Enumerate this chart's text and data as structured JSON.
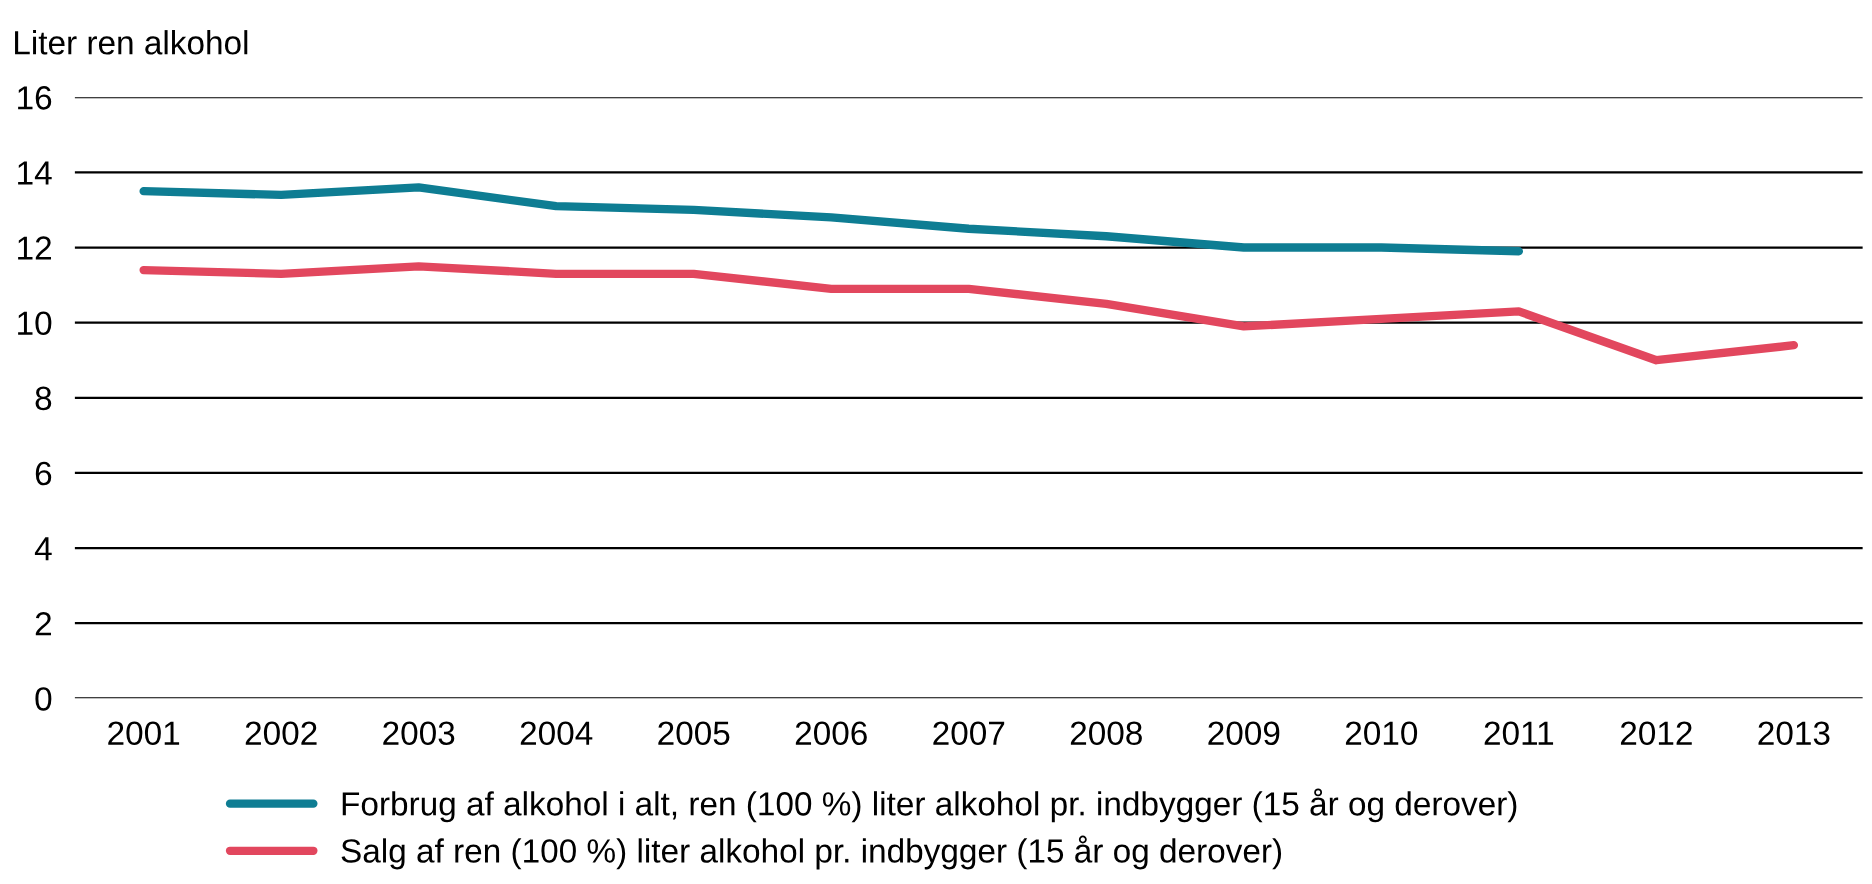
{
  "chart_data": {
    "type": "line",
    "ylabel": "Liter ren alkohol",
    "categories": [
      "2001",
      "2002",
      "2003",
      "2004",
      "2005",
      "2006",
      "2007",
      "2008",
      "2009",
      "2010",
      "2011",
      "2012",
      "2013"
    ],
    "series": [
      {
        "name": "Forbrug af alkohol i alt, ren (100 %) liter alkohol pr. indbygger (15 år og derover)",
        "color": "#0e7d93",
        "values": [
          13.5,
          13.4,
          13.6,
          13.1,
          13.0,
          12.8,
          12.5,
          12.3,
          12.0,
          12.0,
          11.9,
          null,
          null
        ]
      },
      {
        "name": "Salg af ren (100 %) liter alkohol pr. indbygger (15 år og derover)",
        "color": "#e2475e",
        "values": [
          11.4,
          11.3,
          11.5,
          11.3,
          11.3,
          10.9,
          10.9,
          10.5,
          9.9,
          10.1,
          10.3,
          9.0,
          9.4
        ]
      }
    ],
    "ylim": [
      0,
      16
    ],
    "yticks": [
      0,
      2,
      4,
      6,
      8,
      10,
      12,
      14,
      16
    ],
    "grid": "y",
    "legend": "bottom",
    "marker": "none",
    "line_style": "solid"
  }
}
